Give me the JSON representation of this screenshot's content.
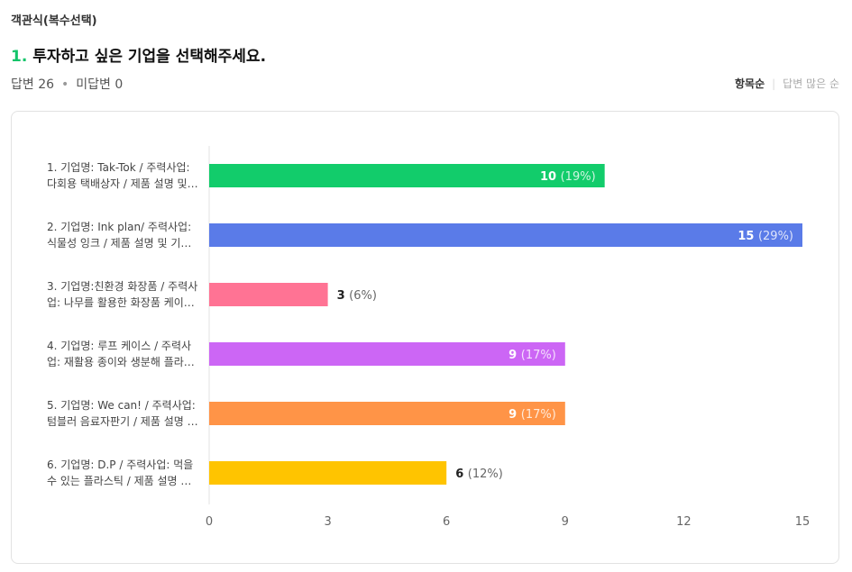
{
  "header": {
    "type": "객관식(복수선택)",
    "question_num": "1.",
    "question": "투자하고 싶은 기업을 선택해주세요.",
    "answers": "답변 26",
    "no_answers": "미답변 0",
    "sort_items": "항목순",
    "sort_most": "답변 많은 순"
  },
  "chart_data": {
    "type": "bar",
    "orientation": "horizontal",
    "xlim": [
      0,
      15
    ],
    "ticks": [
      "0",
      "3",
      "6",
      "9",
      "12",
      "15"
    ],
    "categories": [
      [
        "1. 기업명: Tak-Tok / 주력사업:",
        "다회용 택배상자 / 제품 설명 및…"
      ],
      [
        "2. 기업명: Ink plan/ 주력사업:",
        "식물성 잉크 / 제품 설명 및 기…"
      ],
      [
        "3. 기업명:친환경 화장품 / 주력사",
        "업: 나무를 활용한 화장품 케이…"
      ],
      [
        "4. 기업명: 루프 케이스 / 주력사",
        "업: 재활용 종이와 생분해 플라…"
      ],
      [
        "5. 기업명: We can! / 주력사업:",
        "텀블러 음료자판기 / 제품 설명 …"
      ],
      [
        "6. 기업명: D.P / 주력사업: 먹을",
        "수 있는 플라스틱 / 제품 설명 …"
      ]
    ],
    "values": [
      10,
      15,
      3,
      9,
      9,
      6
    ],
    "percents": [
      "(19%)",
      "(29%)",
      "(6%)",
      "(17%)",
      "(17%)",
      "(12%)"
    ],
    "colors": [
      "#12cc6b",
      "#5a7be8",
      "#ff7394",
      "#cc66f5",
      "#ff9447",
      "#ffc400"
    ]
  }
}
